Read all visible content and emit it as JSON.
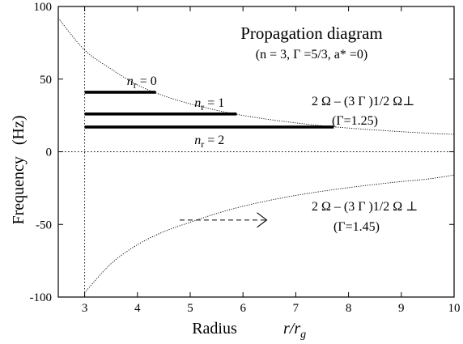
{
  "chart_data": {
    "type": "line",
    "title": "Propagation diagram",
    "subtitle": "(n = 3,  Γ =5/3, a* =0)",
    "xlabel": "Radius",
    "xlabel_var": "r/r",
    "xlabel_sub": "g",
    "ylabel": "Frequency",
    "ylabel_unit": "(Hz)",
    "xlim": [
      2.5,
      10
    ],
    "ylim": [
      -100,
      100
    ],
    "x_ticks": [
      3,
      4,
      5,
      6,
      7,
      8,
      9,
      10
    ],
    "y_ticks": [
      -100,
      -50,
      0,
      50,
      100
    ],
    "series": [
      {
        "label": "2 Ω – (3 Γ )1/2 Ω⊥",
        "param": "(Γ=1.25)",
        "x": [
          2.5,
          3,
          3.5,
          4,
          4.5,
          5,
          5.5,
          6,
          6.5,
          7,
          7.5,
          8,
          8.5,
          9,
          9.5,
          10
        ],
        "y": [
          92,
          70,
          57,
          46,
          38.5,
          33,
          28.6,
          25,
          22.2,
          19.9,
          17.9,
          16.3,
          15,
          13.8,
          12.8,
          12
        ]
      },
      {
        "label": "2 Ω – (3 Γ )1/2 Ω ⊥",
        "param": "(Γ=1.45)",
        "x": [
          3,
          3.5,
          4,
          4.5,
          5,
          5.5,
          6,
          6.5,
          7,
          7.5,
          8,
          8.5,
          9,
          9.5,
          10
        ],
        "y": [
          -97,
          -77,
          -64,
          -55,
          -48.5,
          -42.5,
          -37.5,
          -33.5,
          -30,
          -27.2,
          -24.7,
          -22.5,
          -20.5,
          -18.8,
          -16
        ]
      }
    ],
    "modes": [
      {
        "label": "n_r = 0",
        "n_prefix": "n",
        "sub": "r",
        "suffix": " = 0",
        "y": 41,
        "x_start": 3,
        "x_end": 4.35
      },
      {
        "label": "n_r = 1",
        "n_prefix": "n",
        "sub": "r",
        "suffix": " = 1",
        "y": 26,
        "x_start": 3,
        "x_end": 5.88
      },
      {
        "label": "n_r = 2",
        "n_prefix": "n",
        "sub": "r",
        "suffix": " = 2",
        "y": 17,
        "x_start": 3,
        "x_end": 7.72
      }
    ],
    "arrow": {
      "x_start": 4.8,
      "x_end": 6.45,
      "y": -47,
      "style": "dashed"
    },
    "reference_lines": {
      "x": 3,
      "y": 0
    }
  }
}
